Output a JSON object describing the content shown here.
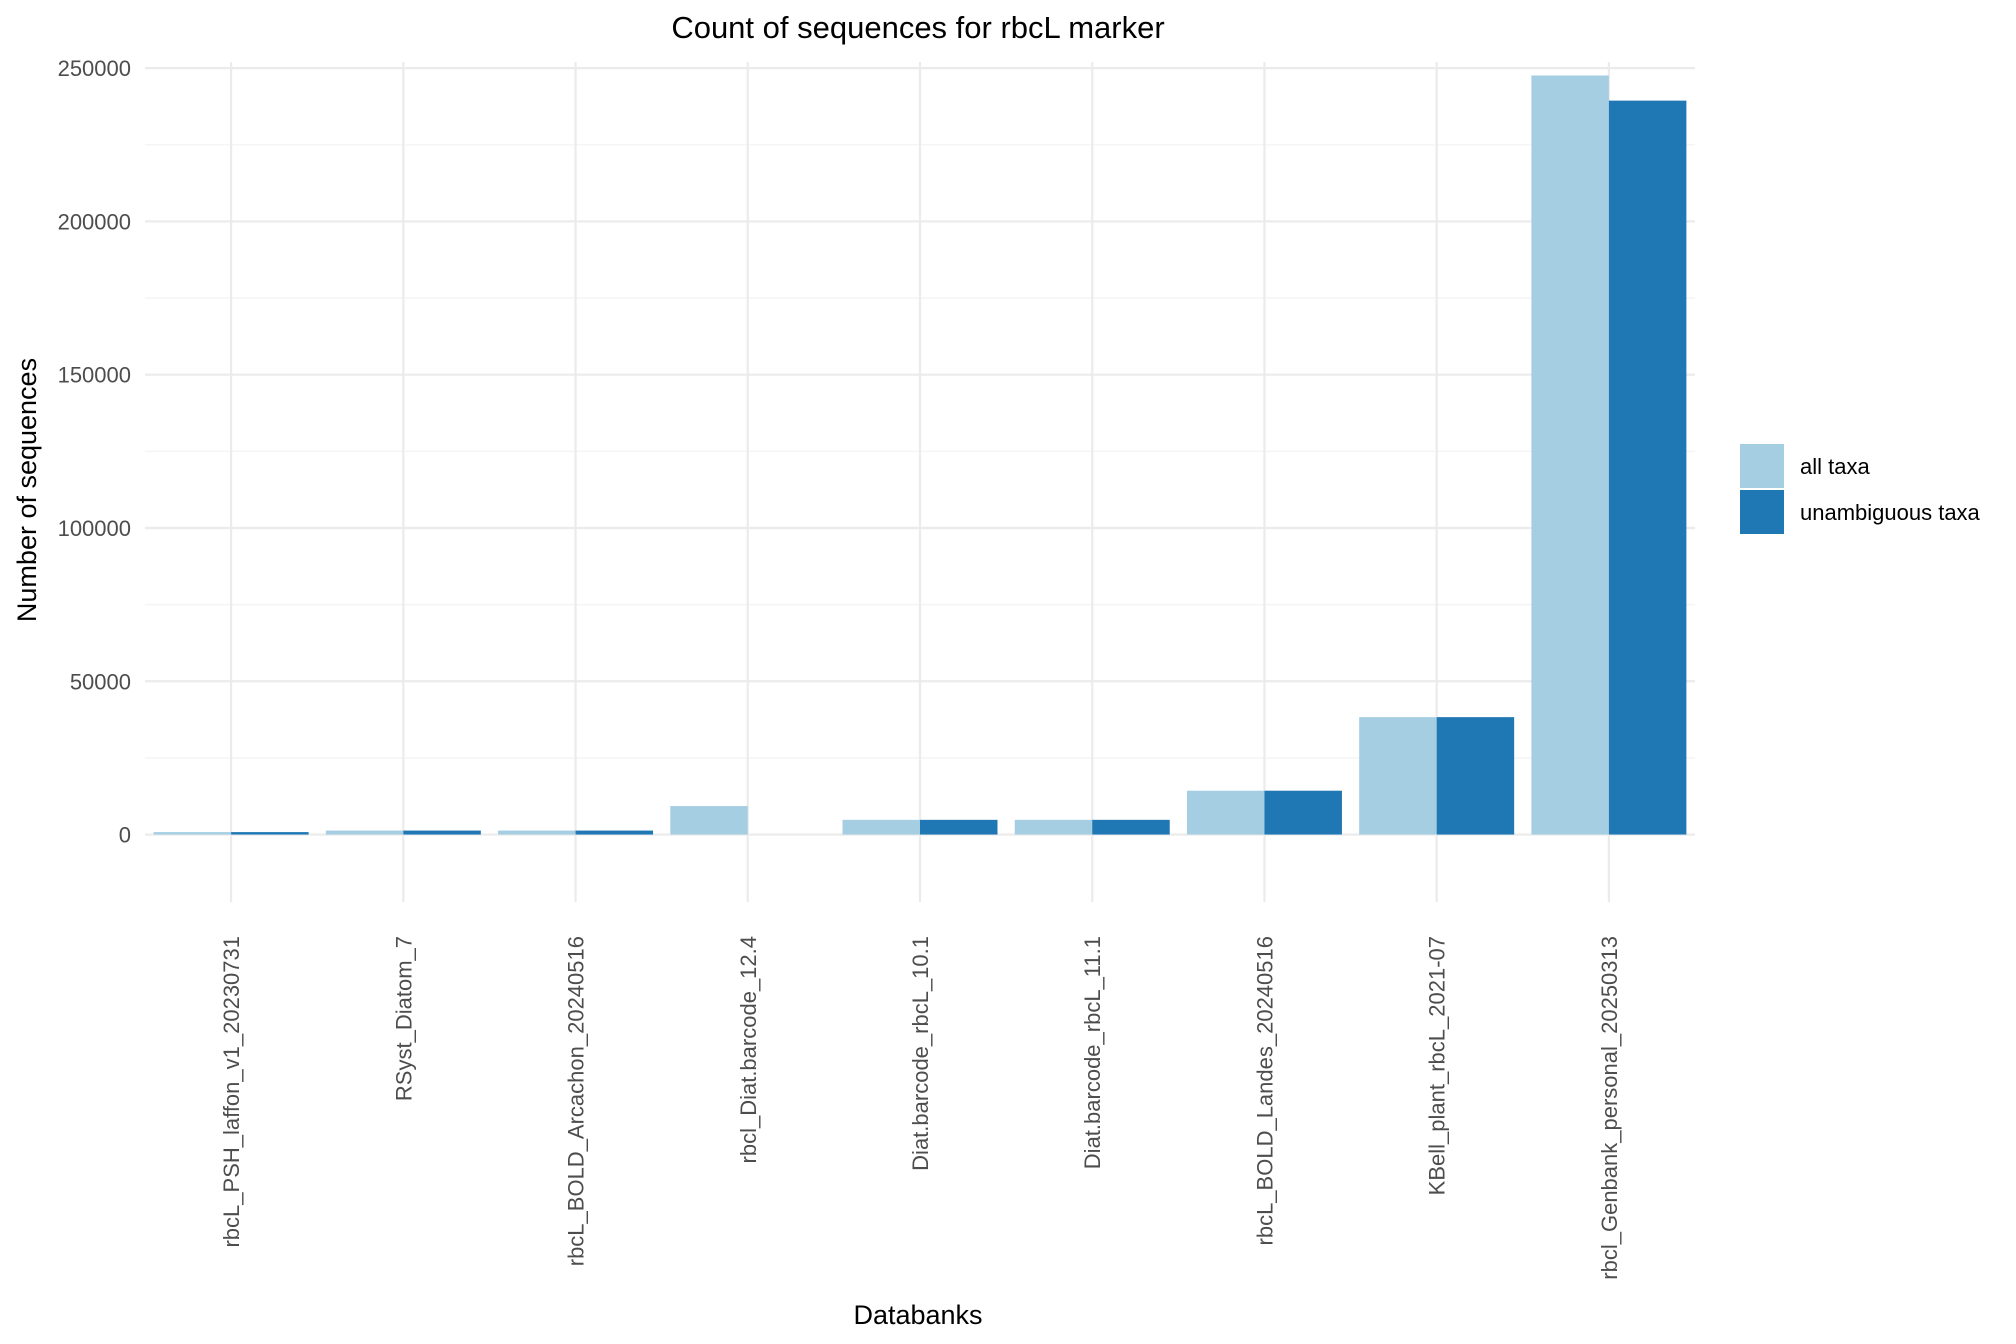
{
  "chart_data": {
    "type": "bar",
    "title": "Count of sequences for rbcL marker",
    "xlabel": "Databanks",
    "ylabel": "Number of sequences",
    "ylim": [
      -22000,
      252000
    ],
    "yticks": [
      0,
      50000,
      100000,
      150000,
      200000,
      250000
    ],
    "ytick_labels": [
      "0",
      "50000",
      "100000",
      "150000",
      "200000",
      "250000"
    ],
    "grid": true,
    "legend_position": "right",
    "categories": [
      "rbcL_PSH_laffon_v1_20230731",
      "RSyst_Diatom_7",
      "rbcL_BOLD_Arcachon_20240516",
      "rbcl_Diat.barcode_12.4",
      "Diat.barcode_rbcL_10.1",
      "Diat.barcode_rbcL_11.1",
      "rbcL_BOLD_Landes_20240516",
      "KBell_plant_rbcL_2021-07",
      "rbcl_Genbank_personal_20250313"
    ],
    "series": [
      {
        "name": "all taxa",
        "color": "#a6cee3",
        "values": [
          800,
          1300,
          1300,
          9300,
          4800,
          4800,
          14300,
          38300,
          247600
        ]
      },
      {
        "name": "unambiguous taxa",
        "color": "#1f78b4",
        "values": [
          800,
          1300,
          1300,
          0,
          4800,
          4800,
          14300,
          38300,
          239400
        ]
      }
    ]
  }
}
